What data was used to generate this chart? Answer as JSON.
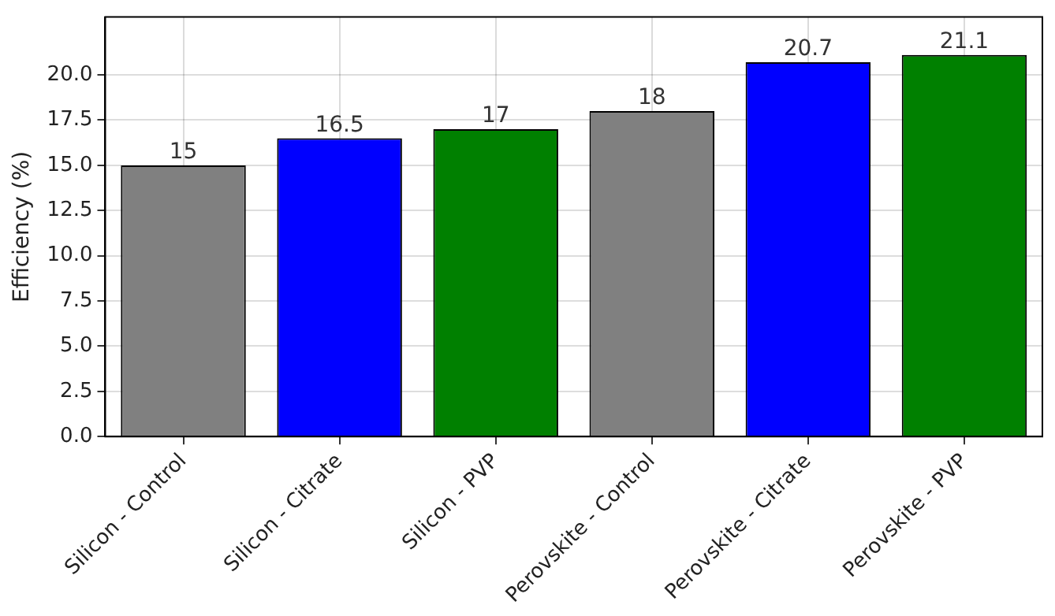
{
  "chart_data": {
    "type": "bar",
    "ylabel": "Efficiency (%)",
    "categories": [
      "Silicon - Control",
      "Silicon - Citrate",
      "Silicon - PVP",
      "Perovskite - Control",
      "Perovskite - Citrate",
      "Perovskite - PVP"
    ],
    "values": [
      15,
      16.5,
      17,
      18,
      20.7,
      21.1
    ],
    "colors": [
      "#808080",
      "#0000ff",
      "#008000",
      "#808080",
      "#0000ff",
      "#008000"
    ],
    "ylim": [
      0,
      23.2
    ],
    "yticks": [
      {
        "value": 0,
        "label": "0.0"
      },
      {
        "value": 2.5,
        "label": "2.5"
      },
      {
        "value": 5,
        "label": "5.0"
      },
      {
        "value": 7.5,
        "label": "7.5"
      },
      {
        "value": 10,
        "label": "10.0"
      },
      {
        "value": 12.5,
        "label": "12.5"
      },
      {
        "value": 15,
        "label": "15.0"
      },
      {
        "value": 17.5,
        "label": "17.5"
      },
      {
        "value": 20,
        "label": "20.0"
      }
    ],
    "grid": true,
    "data_labels": true,
    "legend": false
  }
}
